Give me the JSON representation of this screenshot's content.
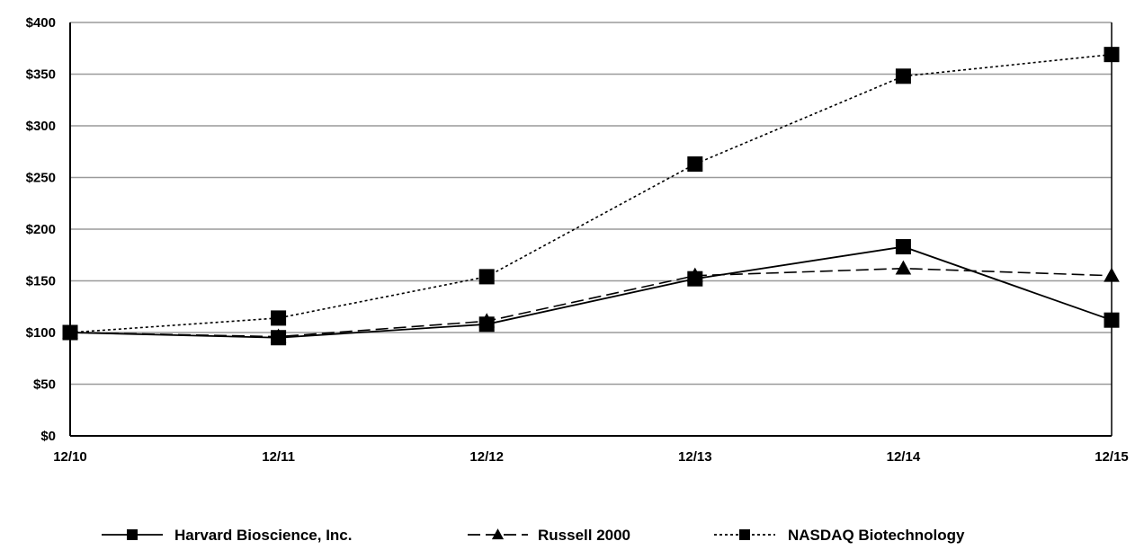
{
  "chart_data": {
    "type": "line",
    "title": "",
    "xlabel": "",
    "ylabel": "",
    "categories": [
      "12/10",
      "12/11",
      "12/12",
      "12/13",
      "12/14",
      "12/15"
    ],
    "y_ticks": [
      "$0",
      "$50",
      "$100",
      "$150",
      "$200",
      "$250",
      "$300",
      "$350",
      "$400"
    ],
    "ylim": [
      0,
      400
    ],
    "grid": true,
    "legend_position": "bottom",
    "series": [
      {
        "name": "Harvard Bioscience, Inc.",
        "values": [
          100,
          95,
          108,
          152,
          183,
          112
        ],
        "line_style": "solid",
        "marker": "square",
        "color": "#000000"
      },
      {
        "name": "Russell 2000",
        "values": [
          100,
          96,
          111,
          155,
          162,
          155
        ],
        "line_style": "dashed",
        "marker": "triangle",
        "color": "#000000"
      },
      {
        "name": "NASDAQ Biotechnology",
        "values": [
          100,
          114,
          154,
          263,
          348,
          369
        ],
        "line_style": "dotted",
        "marker": "square",
        "color": "#000000"
      }
    ]
  }
}
